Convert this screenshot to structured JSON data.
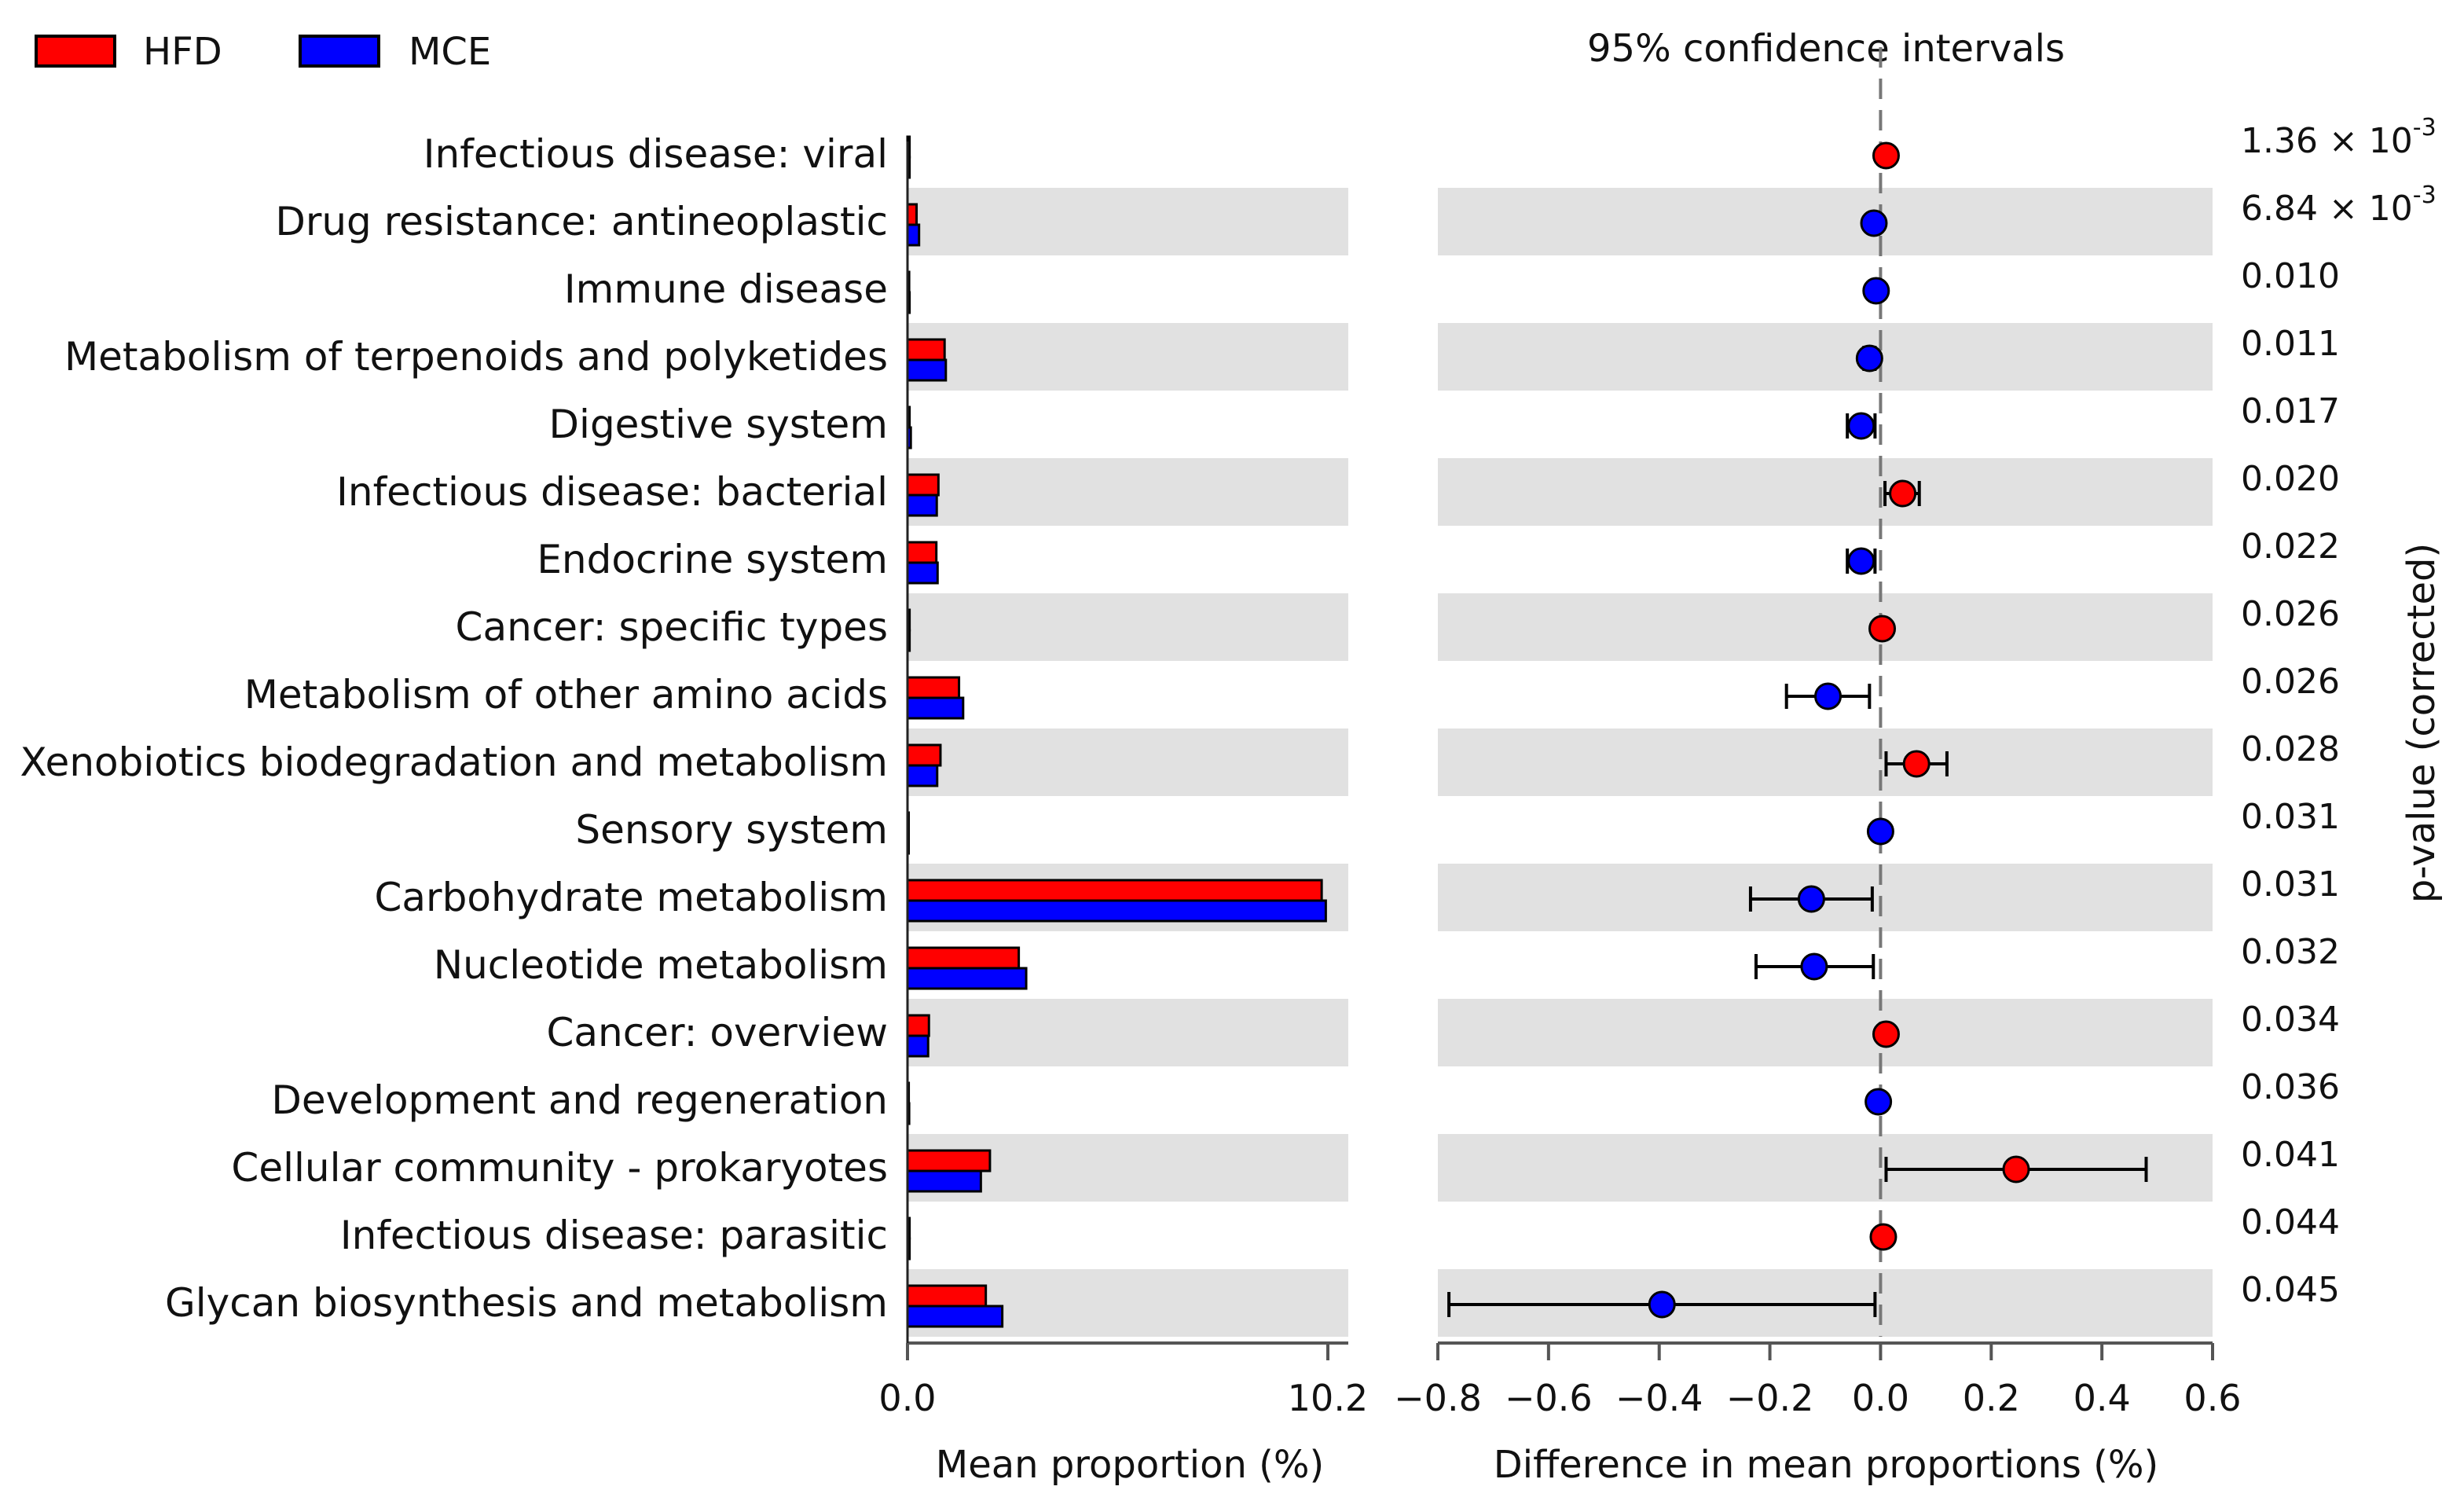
{
  "colors": {
    "hfd": "#ff0000",
    "mce": "#0000ff",
    "stripe": "#e1e1e1",
    "axis": "#555555"
  },
  "chart_data": {
    "type": "bar",
    "legend": [
      {
        "name": "HFD",
        "color": "#ff0000"
      },
      {
        "name": "MCE",
        "color": "#0000ff"
      }
    ],
    "ci_title": "95% confidence intervals",
    "left_xlabel": "Mean proportion (%)",
    "right_xlabel": "Difference in mean proportions (%)",
    "right_ylabel": "p-value (corrected)",
    "left_xlim": [
      0,
      10.2
    ],
    "left_xticks": [
      "0.0",
      "10.2"
    ],
    "right_xlim": [
      -0.8,
      0.6
    ],
    "right_xticks": [
      "−0.8",
      "−0.6",
      "−0.4",
      "−0.2",
      "0.0",
      "0.2",
      "0.4",
      "0.6"
    ],
    "categories": [
      "Infectious disease: viral",
      "Drug resistance: antineoplastic",
      "Immune disease",
      "Metabolism of terpenoids and polyketides",
      "Digestive system",
      "Infectious disease: bacterial",
      "Endocrine system",
      "Cancer: specific types",
      "Metabolism of other amino acids",
      "Xenobiotics biodegradation and metabolism",
      "Sensory system",
      "Carbohydrate metabolism",
      "Nucleotide metabolism",
      "Cancer: overview",
      "Development and regeneration",
      "Cellular community - prokaryotes",
      "Infectious disease: parasitic",
      "Glycan biosynthesis and metabolism"
    ],
    "series": [
      {
        "name": "HFD",
        "values": [
          0.05,
          0.22,
          0.04,
          0.9,
          0.05,
          0.75,
          0.7,
          0.05,
          1.25,
          0.8,
          0.02,
          10.05,
          2.7,
          0.52,
          0.03,
          2.0,
          0.05,
          1.9
        ]
      },
      {
        "name": "MCE",
        "values": [
          0.05,
          0.28,
          0.05,
          0.93,
          0.08,
          0.71,
          0.73,
          0.05,
          1.35,
          0.72,
          0.02,
          10.15,
          2.88,
          0.5,
          0.04,
          1.78,
          0.05,
          2.3
        ]
      }
    ],
    "differences": [
      {
        "value": 0.01,
        "ci": [
          0.005,
          0.015
        ],
        "favors": "HFD"
      },
      {
        "value": -0.012,
        "ci": [
          -0.018,
          -0.006
        ],
        "favors": "MCE"
      },
      {
        "value": -0.008,
        "ci": [
          -0.013,
          -0.003
        ],
        "favors": "MCE"
      },
      {
        "value": -0.02,
        "ci": [
          -0.03,
          -0.01
        ],
        "favors": "MCE"
      },
      {
        "value": -0.035,
        "ci": [
          -0.06,
          -0.01
        ],
        "favors": "MCE"
      },
      {
        "value": 0.04,
        "ci": [
          0.008,
          0.07
        ],
        "favors": "HFD"
      },
      {
        "value": -0.035,
        "ci": [
          -0.06,
          -0.01
        ],
        "favors": "MCE"
      },
      {
        "value": 0.003,
        "ci": [
          0.0,
          0.006
        ],
        "favors": "HFD"
      },
      {
        "value": -0.095,
        "ci": [
          -0.17,
          -0.02
        ],
        "favors": "MCE"
      },
      {
        "value": 0.065,
        "ci": [
          0.01,
          0.12
        ],
        "favors": "HFD"
      },
      {
        "value": 0.0,
        "ci": [
          -0.002,
          0.002
        ],
        "favors": "MCE"
      },
      {
        "value": -0.125,
        "ci": [
          -0.235,
          -0.015
        ],
        "favors": "MCE"
      },
      {
        "value": -0.12,
        "ci": [
          -0.225,
          -0.013
        ],
        "favors": "MCE"
      },
      {
        "value": 0.01,
        "ci": [
          0.005,
          0.015
        ],
        "favors": "HFD"
      },
      {
        "value": -0.004,
        "ci": [
          -0.006,
          -0.001
        ],
        "favors": "MCE"
      },
      {
        "value": 0.245,
        "ci": [
          0.01,
          0.48
        ],
        "favors": "HFD"
      },
      {
        "value": 0.005,
        "ci": [
          0.001,
          0.009
        ],
        "favors": "HFD"
      },
      {
        "value": -0.395,
        "ci": [
          -0.78,
          -0.01
        ],
        "favors": "MCE"
      }
    ],
    "p_values": [
      {
        "mantissa": "1.36 × 10",
        "exponent": "-3"
      },
      {
        "mantissa": "6.84 × 10",
        "exponent": "-3"
      },
      {
        "mantissa": "0.010",
        "exponent": ""
      },
      {
        "mantissa": "0.011",
        "exponent": ""
      },
      {
        "mantissa": "0.017",
        "exponent": ""
      },
      {
        "mantissa": "0.020",
        "exponent": ""
      },
      {
        "mantissa": "0.022",
        "exponent": ""
      },
      {
        "mantissa": "0.026",
        "exponent": ""
      },
      {
        "mantissa": "0.026",
        "exponent": ""
      },
      {
        "mantissa": "0.028",
        "exponent": ""
      },
      {
        "mantissa": "0.031",
        "exponent": ""
      },
      {
        "mantissa": "0.031",
        "exponent": ""
      },
      {
        "mantissa": "0.032",
        "exponent": ""
      },
      {
        "mantissa": "0.034",
        "exponent": ""
      },
      {
        "mantissa": "0.036",
        "exponent": ""
      },
      {
        "mantissa": "0.041",
        "exponent": ""
      },
      {
        "mantissa": "0.044",
        "exponent": ""
      },
      {
        "mantissa": "0.045",
        "exponent": ""
      }
    ]
  }
}
